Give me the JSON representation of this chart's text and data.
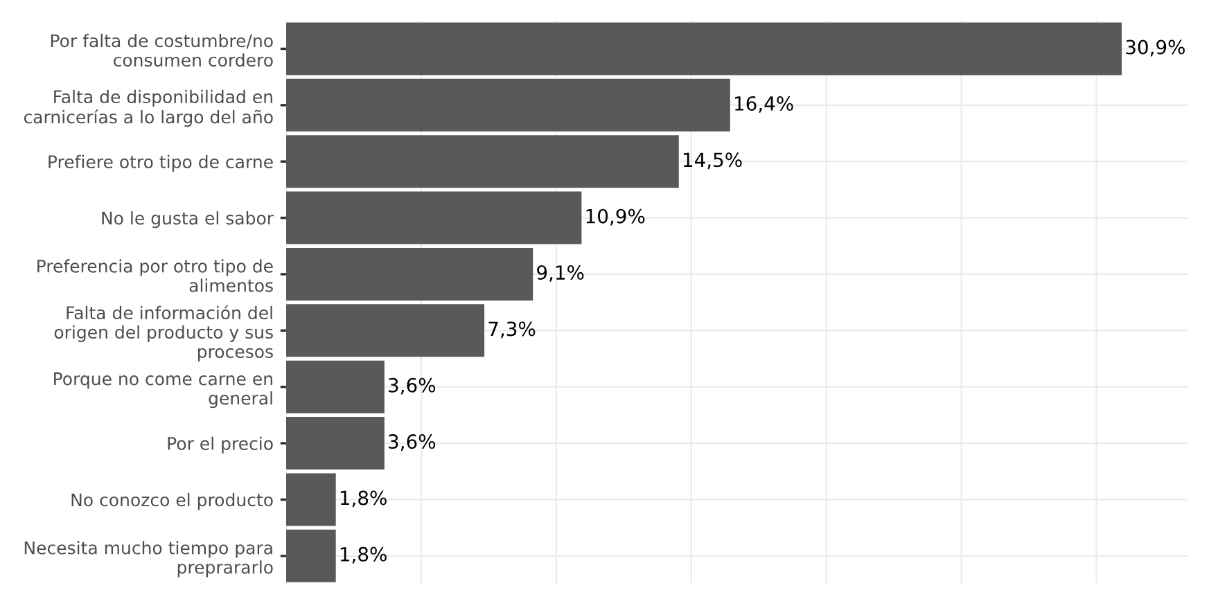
{
  "chart_data": {
    "type": "bar",
    "orientation": "horizontal",
    "categories": [
      "Por falta de costumbre/no\nconsumen cordero",
      "Falta de disponibilidad en\ncarnicerías a lo largo del año",
      "Prefiere otro tipo de carne",
      "No le gusta el sabor",
      "Preferencia por otro tipo de\nalimentos",
      "Falta de información del\norigen del producto y sus\nprocesos",
      "Porque no come carne en\ngeneral",
      "Por el precio",
      "No conozco el producto",
      "Necesita mucho tiempo para\npreprararlo"
    ],
    "values": [
      30.9,
      16.4,
      14.5,
      10.9,
      9.1,
      7.3,
      3.6,
      3.6,
      1.8,
      1.8
    ],
    "value_labels": [
      "30,9%",
      "16,4%",
      "14,5%",
      "10,9%",
      "9,1%",
      "7,3%",
      "3,6%",
      "3,6%",
      "1,8%",
      "1,8%"
    ],
    "color": "#595959",
    "grid": true,
    "tick_labels": "y"
  }
}
